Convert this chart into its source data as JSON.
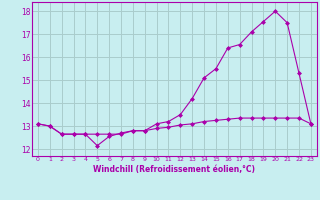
{
  "title": "",
  "xlabel": "Windchill (Refroidissement éolien,°C)",
  "background_color": "#c8eef0",
  "line_color": "#aa00aa",
  "grid_color": "#aacccc",
  "xlim": [
    -0.5,
    23.5
  ],
  "ylim": [
    11.7,
    18.4
  ],
  "xticks": [
    0,
    1,
    2,
    3,
    4,
    5,
    6,
    7,
    8,
    9,
    10,
    11,
    12,
    13,
    14,
    15,
    16,
    17,
    18,
    19,
    20,
    21,
    22,
    23
  ],
  "yticks": [
    12,
    13,
    14,
    15,
    16,
    17,
    18
  ],
  "line1_x": [
    0,
    1,
    2,
    3,
    4,
    5,
    6,
    7,
    8,
    9,
    10,
    11,
    12,
    13,
    14,
    15,
    16,
    17,
    18,
    19,
    20,
    21,
    22,
    23
  ],
  "line1_y": [
    13.1,
    13.0,
    12.65,
    12.65,
    12.65,
    12.65,
    12.65,
    12.65,
    12.8,
    12.8,
    12.9,
    12.95,
    13.05,
    13.1,
    13.2,
    13.25,
    13.3,
    13.35,
    13.35,
    13.35,
    13.35,
    13.35,
    13.35,
    13.1
  ],
  "line2_x": [
    0,
    1,
    2,
    3,
    4,
    5,
    6,
    7,
    8,
    9,
    10,
    11,
    12,
    13,
    14,
    15,
    16,
    17,
    18,
    19,
    20,
    21,
    22,
    23
  ],
  "line2_y": [
    13.1,
    13.0,
    12.65,
    12.65,
    12.65,
    12.15,
    12.55,
    12.7,
    12.8,
    12.8,
    13.1,
    13.2,
    13.5,
    14.2,
    15.1,
    15.5,
    16.4,
    16.55,
    17.1,
    17.55,
    18.0,
    17.5,
    15.3,
    13.1
  ]
}
